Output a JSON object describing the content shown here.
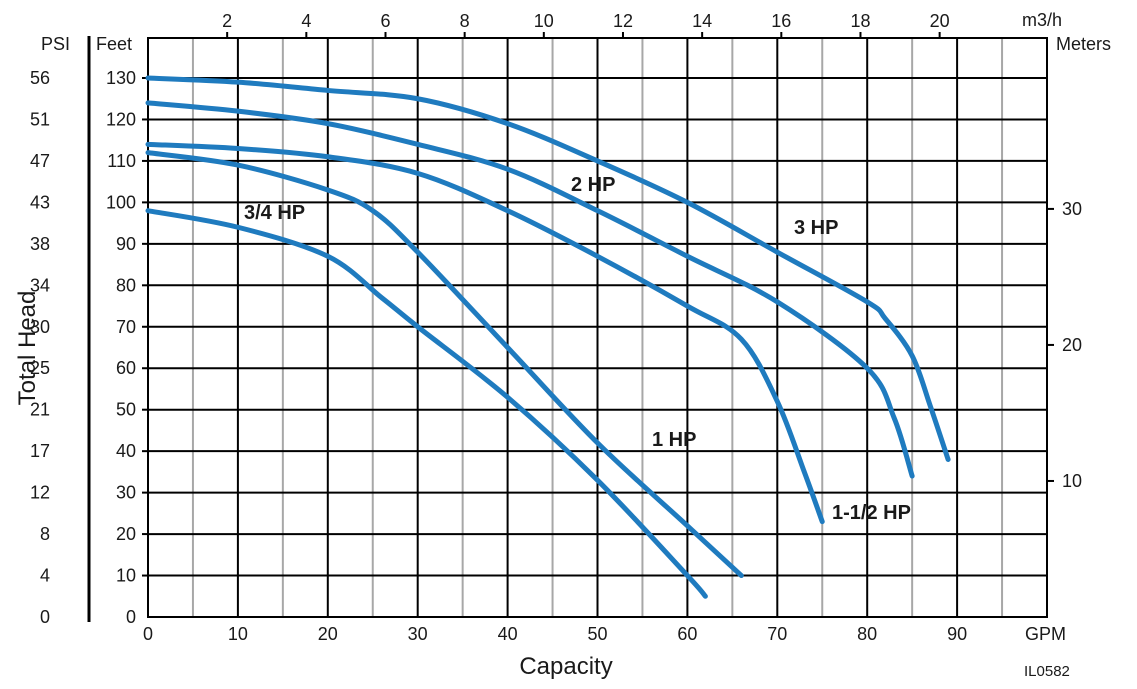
{
  "chart_data": {
    "type": "line",
    "title": "",
    "xlabel": "Capacity",
    "ylabel": "Total Head",
    "x_unit": "GPM",
    "x_top_unit": "m3/h",
    "y_left_unit": "Feet",
    "y_psi_unit": "PSI",
    "y_right_unit": "Meters",
    "figure_code": "IL0582",
    "xlim": [
      0,
      100
    ],
    "ylim": [
      0,
      135
    ],
    "grid": true,
    "x_ticks": [
      0,
      10,
      20,
      30,
      40,
      50,
      60,
      70,
      80,
      90
    ],
    "x_top_ticks": [
      2,
      4,
      6,
      8,
      10,
      12,
      14,
      16,
      18,
      20
    ],
    "feet_ticks": [
      0,
      10,
      20,
      30,
      40,
      50,
      60,
      70,
      80,
      90,
      100,
      110,
      120,
      130
    ],
    "psi_ticks": [
      "0",
      "4",
      "8",
      "12",
      "17",
      "21",
      "25",
      "30",
      "34",
      "38",
      "43",
      "47",
      "51",
      "56"
    ],
    "meter_ticks": [
      10,
      20,
      30
    ],
    "curve_color": "#1f7bbf",
    "series": [
      {
        "name": "3/4 HP",
        "x": [
          0,
          10,
          20,
          26,
          30,
          40,
          50,
          60,
          62
        ],
        "y": [
          98,
          94,
          87,
          77,
          70,
          53,
          33,
          10,
          5
        ]
      },
      {
        "name": "1 HP",
        "x": [
          0,
          10,
          20,
          25,
          30,
          40,
          50,
          60,
          66
        ],
        "y": [
          112,
          109,
          103,
          98,
          88,
          65,
          42,
          22,
          10
        ]
      },
      {
        "name": "1-1/2  HP",
        "x": [
          0,
          10,
          20,
          30,
          40,
          50,
          60,
          66,
          70,
          73,
          75
        ],
        "y": [
          114,
          113,
          111,
          107,
          98,
          87,
          75,
          67,
          52,
          35,
          23
        ]
      },
      {
        "name": "2 HP",
        "x": [
          0,
          10,
          20,
          30,
          40,
          50,
          60,
          70,
          80,
          83,
          85
        ],
        "y": [
          124,
          122,
          119,
          114,
          108,
          98,
          87,
          76,
          60,
          48,
          34
        ]
      },
      {
        "name": "3 HP",
        "x": [
          0,
          10,
          20,
          30,
          40,
          50,
          60,
          70,
          80,
          82,
          85,
          87,
          89
        ],
        "y": [
          130,
          129,
          127,
          125,
          119,
          110,
          100,
          88,
          76,
          72,
          63,
          51,
          38
        ]
      }
    ]
  }
}
